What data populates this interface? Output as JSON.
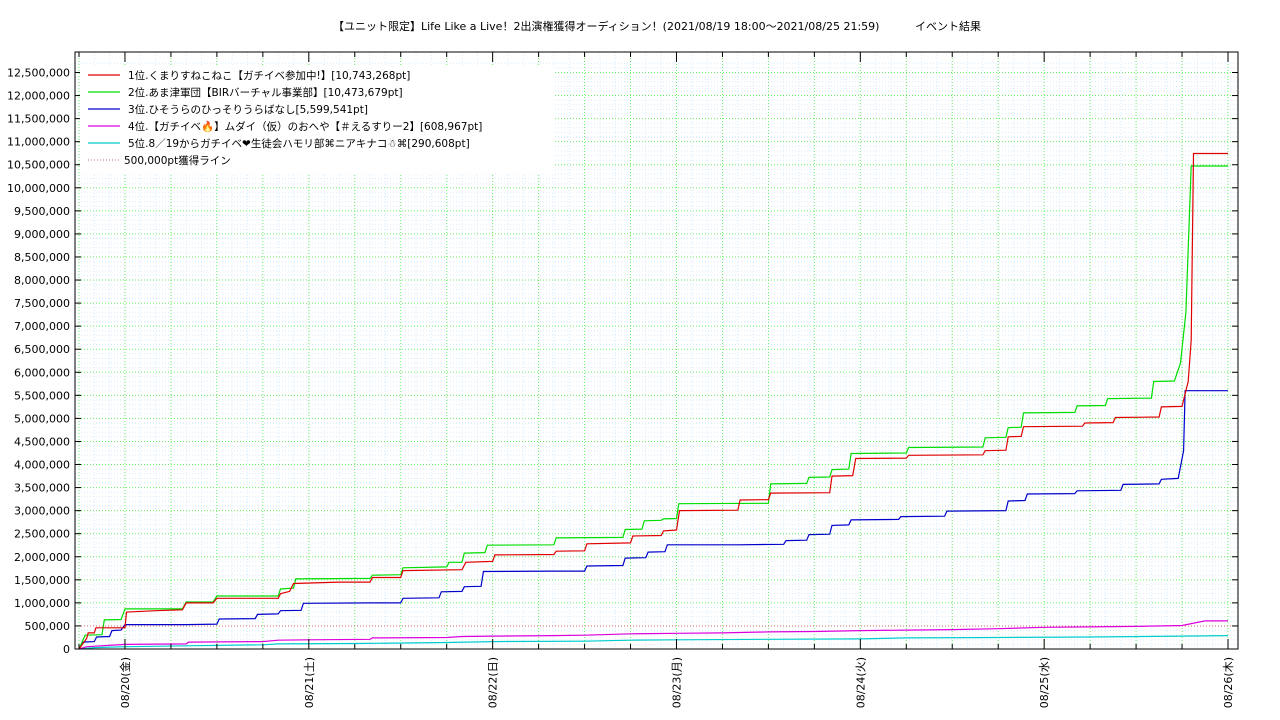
{
  "chart_data": {
    "type": "line",
    "title": "【ユニット限定】Life Like a Live！2出演権獲得オーディション！(2021/08/19 18:00〜2021/08/25 21:59)",
    "subtitle": "イベント結果",
    "ylim": [
      0,
      12750000
    ],
    "yticks": [
      "0",
      "500,000",
      "1,000,000",
      "1,500,000",
      "2,000,000",
      "2,500,000",
      "3,000,000",
      "3,500,000",
      "4,000,000",
      "4,500,000",
      "5,000,000",
      "5,500,000",
      "6,000,000",
      "6,500,000",
      "7,000,000",
      "7,500,000",
      "8,000,000",
      "8,500,000",
      "9,000,000",
      "9,500,000",
      "10,000,000",
      "10,500,000",
      "11,000,000",
      "11,500,000",
      "12,000,000",
      "12,500,000"
    ],
    "x_unit": "hours since 2021/08/19 18:00",
    "xlim": [
      0,
      150
    ],
    "xticks": [
      {
        "t": 6,
        "label": "08/20(金)"
      },
      {
        "t": 30,
        "label": "08/21(土)"
      },
      {
        "t": 54,
        "label": "08/22(日)"
      },
      {
        "t": 78,
        "label": "08/23(月)"
      },
      {
        "t": 102,
        "label": "08/24(火)"
      },
      {
        "t": 126,
        "label": "08/25(水)"
      },
      {
        "t": 150,
        "label": "08/26(木)"
      }
    ],
    "threshold": {
      "name": "500,000pt獲得ライン",
      "value": 500000,
      "color": "#cc6666"
    },
    "series": [
      {
        "name": "1位.くまりすねこねこ【ガチイベ参加中!】[10,743,268pt]",
        "color": "#e00000",
        "points": [
          [
            0,
            0
          ],
          [
            1,
            230000
          ],
          [
            1.2,
            350000
          ],
          [
            2,
            350000
          ],
          [
            2.2,
            460000
          ],
          [
            6,
            460000
          ],
          [
            6.2,
            800000
          ],
          [
            10,
            830000
          ],
          [
            13.5,
            850000
          ],
          [
            14,
            1000000
          ],
          [
            17.5,
            1000000
          ],
          [
            18,
            1100000
          ],
          [
            26,
            1100000
          ],
          [
            26.3,
            1200000
          ],
          [
            27.5,
            1250000
          ],
          [
            28,
            1420000
          ],
          [
            34,
            1450000
          ],
          [
            38,
            1450000
          ],
          [
            38.3,
            1550000
          ],
          [
            42,
            1550000
          ],
          [
            42.3,
            1700000
          ],
          [
            50,
            1720000
          ],
          [
            50.5,
            1880000
          ],
          [
            54,
            1900000
          ],
          [
            54.3,
            2040000
          ],
          [
            62,
            2050000
          ],
          [
            62.3,
            2120000
          ],
          [
            66,
            2130000
          ],
          [
            66.3,
            2280000
          ],
          [
            72,
            2300000
          ],
          [
            72.3,
            2450000
          ],
          [
            76,
            2460000
          ],
          [
            76.3,
            2560000
          ],
          [
            78,
            2580000
          ],
          [
            78.4,
            3000000
          ],
          [
            86,
            3010000
          ],
          [
            86.3,
            3230000
          ],
          [
            90,
            3240000
          ],
          [
            90.3,
            3380000
          ],
          [
            98,
            3390000
          ],
          [
            98.3,
            3750000
          ],
          [
            101,
            3760000
          ],
          [
            101.4,
            4130000
          ],
          [
            108,
            4140000
          ],
          [
            108.3,
            4200000
          ],
          [
            118,
            4210000
          ],
          [
            118.3,
            4300000
          ],
          [
            121,
            4310000
          ],
          [
            121.3,
            4600000
          ],
          [
            123,
            4610000
          ],
          [
            123.3,
            4820000
          ],
          [
            131,
            4830000
          ],
          [
            131.3,
            4900000
          ],
          [
            135,
            4910000
          ],
          [
            135.3,
            5020000
          ],
          [
            141,
            5030000
          ],
          [
            141.3,
            5250000
          ],
          [
            144,
            5260000
          ],
          [
            144.8,
            5800000
          ],
          [
            145.2,
            6700000
          ],
          [
            145.5,
            10743268
          ],
          [
            150,
            10743268
          ]
        ]
      },
      {
        "name": "2位.あま津軍団【BIRバーチャル事業部】[10,473,679pt]",
        "color": "#00dd00",
        "points": [
          [
            0,
            0
          ],
          [
            0.8,
            300000
          ],
          [
            3,
            310000
          ],
          [
            3.3,
            630000
          ],
          [
            5.5,
            640000
          ],
          [
            6,
            870000
          ],
          [
            10,
            870000
          ],
          [
            13.5,
            870000
          ],
          [
            14,
            1020000
          ],
          [
            17.5,
            1020000
          ],
          [
            18,
            1150000
          ],
          [
            26,
            1150000
          ],
          [
            26.3,
            1300000
          ],
          [
            28,
            1320000
          ],
          [
            28.3,
            1520000
          ],
          [
            38,
            1530000
          ],
          [
            38.3,
            1600000
          ],
          [
            42,
            1610000
          ],
          [
            42.3,
            1760000
          ],
          [
            48,
            1780000
          ],
          [
            48.3,
            1880000
          ],
          [
            50,
            1880000
          ],
          [
            50.3,
            2080000
          ],
          [
            53,
            2090000
          ],
          [
            53.3,
            2250000
          ],
          [
            62,
            2260000
          ],
          [
            62.3,
            2410000
          ],
          [
            71,
            2420000
          ],
          [
            71.3,
            2590000
          ],
          [
            73.5,
            2600000
          ],
          [
            73.8,
            2780000
          ],
          [
            76,
            2790000
          ],
          [
            76.3,
            2820000
          ],
          [
            78,
            2830000
          ],
          [
            78.3,
            3150000
          ],
          [
            90,
            3160000
          ],
          [
            90.3,
            3580000
          ],
          [
            95,
            3590000
          ],
          [
            95.3,
            3720000
          ],
          [
            98,
            3730000
          ],
          [
            98.3,
            3890000
          ],
          [
            100.5,
            3900000
          ],
          [
            100.8,
            4240000
          ],
          [
            108,
            4250000
          ],
          [
            108.3,
            4370000
          ],
          [
            118,
            4380000
          ],
          [
            118.3,
            4580000
          ],
          [
            121,
            4590000
          ],
          [
            121.3,
            4800000
          ],
          [
            123,
            4810000
          ],
          [
            123.3,
            5120000
          ],
          [
            130,
            5130000
          ],
          [
            130.3,
            5270000
          ],
          [
            134,
            5280000
          ],
          [
            134.3,
            5430000
          ],
          [
            140,
            5440000
          ],
          [
            140.3,
            5800000
          ],
          [
            143,
            5810000
          ],
          [
            143.8,
            6200000
          ],
          [
            144.5,
            7300000
          ],
          [
            145.2,
            10473679
          ],
          [
            150,
            10473679
          ]
        ]
      },
      {
        "name": "3位.ひそうらのひっそりうらばなし[5,599,541pt]",
        "color": "#0000cc",
        "points": [
          [
            0,
            0
          ],
          [
            0.5,
            150000
          ],
          [
            2,
            160000
          ],
          [
            2.3,
            260000
          ],
          [
            4,
            270000
          ],
          [
            4.3,
            400000
          ],
          [
            5.5,
            410000
          ],
          [
            6,
            530000
          ],
          [
            14,
            530000
          ],
          [
            18,
            540000
          ],
          [
            18.3,
            650000
          ],
          [
            23,
            660000
          ],
          [
            23.3,
            750000
          ],
          [
            26,
            760000
          ],
          [
            26.3,
            830000
          ],
          [
            29,
            840000
          ],
          [
            29.3,
            990000
          ],
          [
            38,
            1000000
          ],
          [
            42,
            1000000
          ],
          [
            42.3,
            1100000
          ],
          [
            47,
            1110000
          ],
          [
            47.3,
            1240000
          ],
          [
            50,
            1250000
          ],
          [
            50.3,
            1350000
          ],
          [
            52.5,
            1360000
          ],
          [
            52.8,
            1680000
          ],
          [
            62,
            1690000
          ],
          [
            66,
            1690000
          ],
          [
            66.3,
            1800000
          ],
          [
            71,
            1810000
          ],
          [
            71.3,
            1970000
          ],
          [
            74,
            1980000
          ],
          [
            74.3,
            2100000
          ],
          [
            76.5,
            2110000
          ],
          [
            76.8,
            2260000
          ],
          [
            86,
            2260000
          ],
          [
            92,
            2270000
          ],
          [
            92.3,
            2350000
          ],
          [
            95,
            2360000
          ],
          [
            95.3,
            2480000
          ],
          [
            98,
            2490000
          ],
          [
            98.3,
            2680000
          ],
          [
            100.5,
            2690000
          ],
          [
            100.8,
            2800000
          ],
          [
            107,
            2810000
          ],
          [
            107.3,
            2870000
          ],
          [
            113,
            2880000
          ],
          [
            113.3,
            2990000
          ],
          [
            121,
            3000000
          ],
          [
            121.3,
            3210000
          ],
          [
            123.5,
            3220000
          ],
          [
            123.8,
            3360000
          ],
          [
            130,
            3370000
          ],
          [
            130.3,
            3430000
          ],
          [
            136,
            3440000
          ],
          [
            136.3,
            3570000
          ],
          [
            141,
            3580000
          ],
          [
            141.3,
            3680000
          ],
          [
            143.5,
            3700000
          ],
          [
            144.2,
            4300000
          ],
          [
            144.4,
            5599541
          ],
          [
            150,
            5599541
          ]
        ]
      },
      {
        "name": "4位.【ガチイベ🔥】ムダイ（仮）のおへや【＃えるすりー2】[608,967pt]",
        "color": "#dd00dd",
        "points": [
          [
            0,
            0
          ],
          [
            1,
            50000
          ],
          [
            6,
            100000
          ],
          [
            14,
            110000
          ],
          [
            14.3,
            150000
          ],
          [
            24,
            160000
          ],
          [
            26,
            190000
          ],
          [
            30,
            200000
          ],
          [
            38,
            210000
          ],
          [
            38.3,
            240000
          ],
          [
            48,
            250000
          ],
          [
            50,
            270000
          ],
          [
            54,
            280000
          ],
          [
            62,
            290000
          ],
          [
            66,
            300000
          ],
          [
            72,
            330000
          ],
          [
            78,
            340000
          ],
          [
            84,
            350000
          ],
          [
            90,
            370000
          ],
          [
            96,
            380000
          ],
          [
            102,
            400000
          ],
          [
            108,
            410000
          ],
          [
            114,
            420000
          ],
          [
            120,
            440000
          ],
          [
            126,
            470000
          ],
          [
            132,
            480000
          ],
          [
            138,
            490000
          ],
          [
            144,
            510000
          ],
          [
            147,
            608967
          ],
          [
            150,
            608967
          ]
        ]
      },
      {
        "name": "5位.8／19からガチイベ❤生徒会ハモリ部⌘ニアキナコ☃⌘[290,608pt]",
        "color": "#00cccc",
        "points": [
          [
            0,
            0
          ],
          [
            2,
            30000
          ],
          [
            6,
            50000
          ],
          [
            14,
            70000
          ],
          [
            24,
            90000
          ],
          [
            26,
            110000
          ],
          [
            36,
            120000
          ],
          [
            48,
            140000
          ],
          [
            54,
            160000
          ],
          [
            66,
            170000
          ],
          [
            72,
            190000
          ],
          [
            78,
            200000
          ],
          [
            90,
            210000
          ],
          [
            102,
            220000
          ],
          [
            108,
            240000
          ],
          [
            120,
            250000
          ],
          [
            132,
            260000
          ],
          [
            144,
            280000
          ],
          [
            150,
            290608
          ]
        ]
      }
    ]
  }
}
